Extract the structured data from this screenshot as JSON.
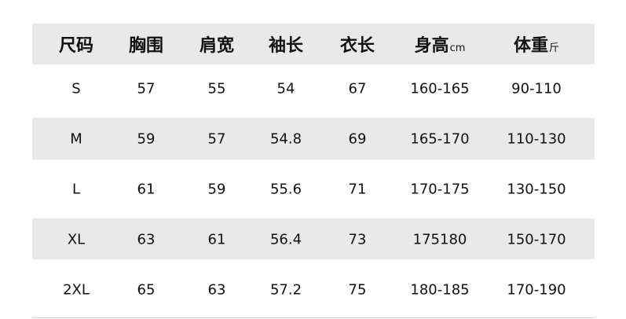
{
  "table": {
    "header": [
      {
        "text": "尺码"
      },
      {
        "text": "胸围"
      },
      {
        "text": "肩宽"
      },
      {
        "text": "袖长"
      },
      {
        "text": "衣长"
      },
      {
        "text": "身高",
        "unit": "cm"
      },
      {
        "text": "体重",
        "unit": "斤"
      }
    ],
    "rows": [
      [
        "S",
        "57",
        "55",
        "54",
        "67",
        "160-165",
        "90-110"
      ],
      [
        "M",
        "59",
        "57",
        "54.8",
        "69",
        "165-170",
        "110-130"
      ],
      [
        "L",
        "61",
        "59",
        "55.6",
        "71",
        "170-175",
        "130-150"
      ],
      [
        "XL",
        "63",
        "61",
        "56.4",
        "73",
        "175180",
        "150-170"
      ],
      [
        "2XL",
        "65",
        "63",
        "57.2",
        "75",
        "180-185",
        "170-190"
      ]
    ]
  }
}
